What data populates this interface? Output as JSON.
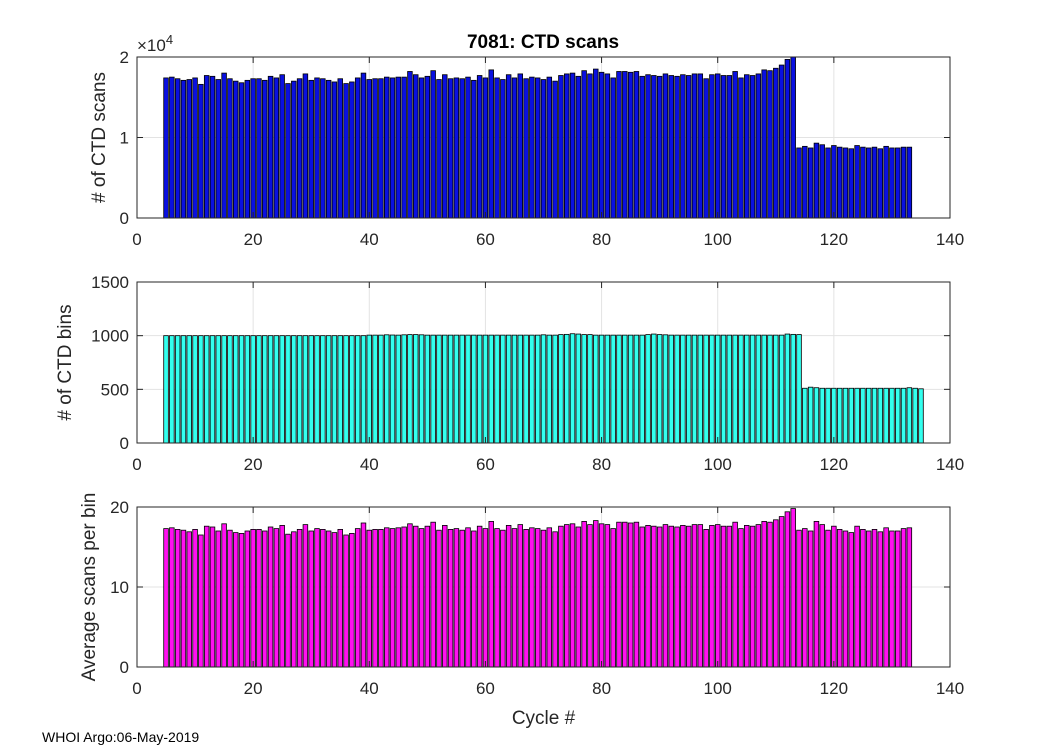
{
  "title": "7081: CTD scans",
  "footer": "WHOI Argo:06-May-2019",
  "chart_data": [
    {
      "type": "bar",
      "name": "ctd-scans",
      "title": "7081: CTD scans",
      "ylabel": "# of CTD scans",
      "xlabel": "",
      "exponent_base": "×10",
      "exponent_power": "4",
      "xlim": [
        0,
        140
      ],
      "ylim": [
        0,
        2
      ],
      "xticks": [
        0,
        20,
        40,
        60,
        80,
        100,
        120,
        140
      ],
      "yticks": [
        0,
        1,
        2
      ],
      "grid": true,
      "color": "#0a10e0",
      "x_start": 5,
      "values": [
        1.74,
        1.75,
        1.73,
        1.71,
        1.72,
        1.74,
        1.66,
        1.77,
        1.76,
        1.72,
        1.8,
        1.73,
        1.7,
        1.68,
        1.71,
        1.73,
        1.73,
        1.71,
        1.76,
        1.74,
        1.78,
        1.67,
        1.7,
        1.73,
        1.79,
        1.71,
        1.74,
        1.73,
        1.71,
        1.69,
        1.73,
        1.67,
        1.69,
        1.74,
        1.8,
        1.72,
        1.73,
        1.73,
        1.75,
        1.74,
        1.75,
        1.75,
        1.82,
        1.78,
        1.74,
        1.76,
        1.83,
        1.72,
        1.78,
        1.73,
        1.74,
        1.73,
        1.75,
        1.71,
        1.77,
        1.74,
        1.84,
        1.74,
        1.72,
        1.78,
        1.74,
        1.79,
        1.73,
        1.75,
        1.74,
        1.72,
        1.75,
        1.7,
        1.77,
        1.79,
        1.8,
        1.76,
        1.83,
        1.79,
        1.85,
        1.81,
        1.79,
        1.74,
        1.82,
        1.82,
        1.81,
        1.82,
        1.76,
        1.78,
        1.77,
        1.76,
        1.79,
        1.77,
        1.76,
        1.78,
        1.77,
        1.79,
        1.79,
        1.73,
        1.78,
        1.79,
        1.77,
        1.77,
        1.82,
        1.74,
        1.78,
        1.77,
        1.79,
        1.84,
        1.83,
        1.86,
        1.9,
        1.97,
        2.0,
        0.87,
        0.89,
        0.87,
        0.93,
        0.91,
        0.87,
        0.9,
        0.88,
        0.87,
        0.86,
        0.9,
        0.88,
        0.87,
        0.88,
        0.86,
        0.89,
        0.87,
        0.87,
        0.88,
        0.88
      ]
    },
    {
      "type": "bar",
      "name": "ctd-bins",
      "title": "",
      "ylabel": "# of CTD bins",
      "xlabel": "",
      "xlim": [
        0,
        140
      ],
      "ylim": [
        0,
        1500
      ],
      "xticks": [
        0,
        20,
        40,
        60,
        80,
        100,
        120,
        140
      ],
      "yticks": [
        0,
        500,
        1000,
        1500
      ],
      "grid": true,
      "color": "#33ffee",
      "x_start": 5,
      "values": [
        1000,
        1000,
        1000,
        1000,
        1000,
        1000,
        1000,
        1000,
        1000,
        1000,
        1000,
        1000,
        1000,
        1000,
        1000,
        1000,
        1000,
        1000,
        1000,
        1000,
        1000,
        1000,
        1000,
        1000,
        1000,
        1000,
        1000,
        1000,
        1000,
        1000,
        1000,
        1000,
        1000,
        1000,
        1000,
        1005,
        1005,
        1005,
        1008,
        1006,
        1005,
        1008,
        1010,
        1010,
        1008,
        1005,
        1005,
        1005,
        1005,
        1005,
        1005,
        1005,
        1005,
        1005,
        1005,
        1005,
        1005,
        1005,
        1005,
        1005,
        1005,
        1005,
        1005,
        1005,
        1005,
        1008,
        1005,
        1005,
        1010,
        1012,
        1018,
        1015,
        1010,
        1010,
        1005,
        1005,
        1005,
        1005,
        1005,
        1005,
        1005,
        1005,
        1005,
        1010,
        1015,
        1010,
        1008,
        1005,
        1005,
        1005,
        1005,
        1005,
        1005,
        1005,
        1005,
        1005,
        1005,
        1005,
        1005,
        1005,
        1005,
        1005,
        1005,
        1005,
        1005,
        1005,
        1005,
        1015,
        1012,
        1010,
        510,
        520,
        515,
        510,
        510,
        510,
        510,
        510,
        510,
        510,
        510,
        510,
        510,
        510,
        510,
        510,
        510,
        510,
        515,
        510,
        505
      ]
    },
    {
      "type": "bar",
      "name": "scans-per-bin",
      "title": "",
      "ylabel": "Average scans per bin",
      "xlabel": "Cycle #",
      "xlim": [
        0,
        140
      ],
      "ylim": [
        0,
        20
      ],
      "xticks": [
        0,
        20,
        40,
        60,
        80,
        100,
        120,
        140
      ],
      "yticks": [
        0,
        10,
        20
      ],
      "grid": true,
      "color": "#ff10f0",
      "x_start": 5,
      "values": [
        17.3,
        17.4,
        17.2,
        17.1,
        16.9,
        17.2,
        16.5,
        17.6,
        17.5,
        17.0,
        17.9,
        17.1,
        16.8,
        16.7,
        17.0,
        17.2,
        17.2,
        17.0,
        17.5,
        17.3,
        17.7,
        16.6,
        16.9,
        17.2,
        17.8,
        17.0,
        17.3,
        17.2,
        17.0,
        16.8,
        17.2,
        16.5,
        16.7,
        17.3,
        18.0,
        17.1,
        17.2,
        17.2,
        17.4,
        17.3,
        17.4,
        17.5,
        17.9,
        17.6,
        17.3,
        17.6,
        18.1,
        17.1,
        17.7,
        17.2,
        17.3,
        17.1,
        17.4,
        17.0,
        17.6,
        17.3,
        18.2,
        17.3,
        17.1,
        17.7,
        17.3,
        17.8,
        17.2,
        17.4,
        17.3,
        17.1,
        17.4,
        16.9,
        17.6,
        17.8,
        17.9,
        17.5,
        18.2,
        17.8,
        18.3,
        17.9,
        17.8,
        17.3,
        18.1,
        18.1,
        18.0,
        18.1,
        17.5,
        17.7,
        17.6,
        17.5,
        17.8,
        17.6,
        17.5,
        17.7,
        17.6,
        17.8,
        17.8,
        17.2,
        17.7,
        17.8,
        17.6,
        17.6,
        18.1,
        17.3,
        17.7,
        17.6,
        17.8,
        18.2,
        18.1,
        18.4,
        18.8,
        19.4,
        19.8,
        17.1,
        17.3,
        17.0,
        18.2,
        17.8,
        17.1,
        17.6,
        17.2,
        17.0,
        16.8,
        17.6,
        17.2,
        17.0,
        17.2,
        16.9,
        17.4,
        17.0,
        17.0,
        17.3,
        17.4
      ]
    }
  ]
}
